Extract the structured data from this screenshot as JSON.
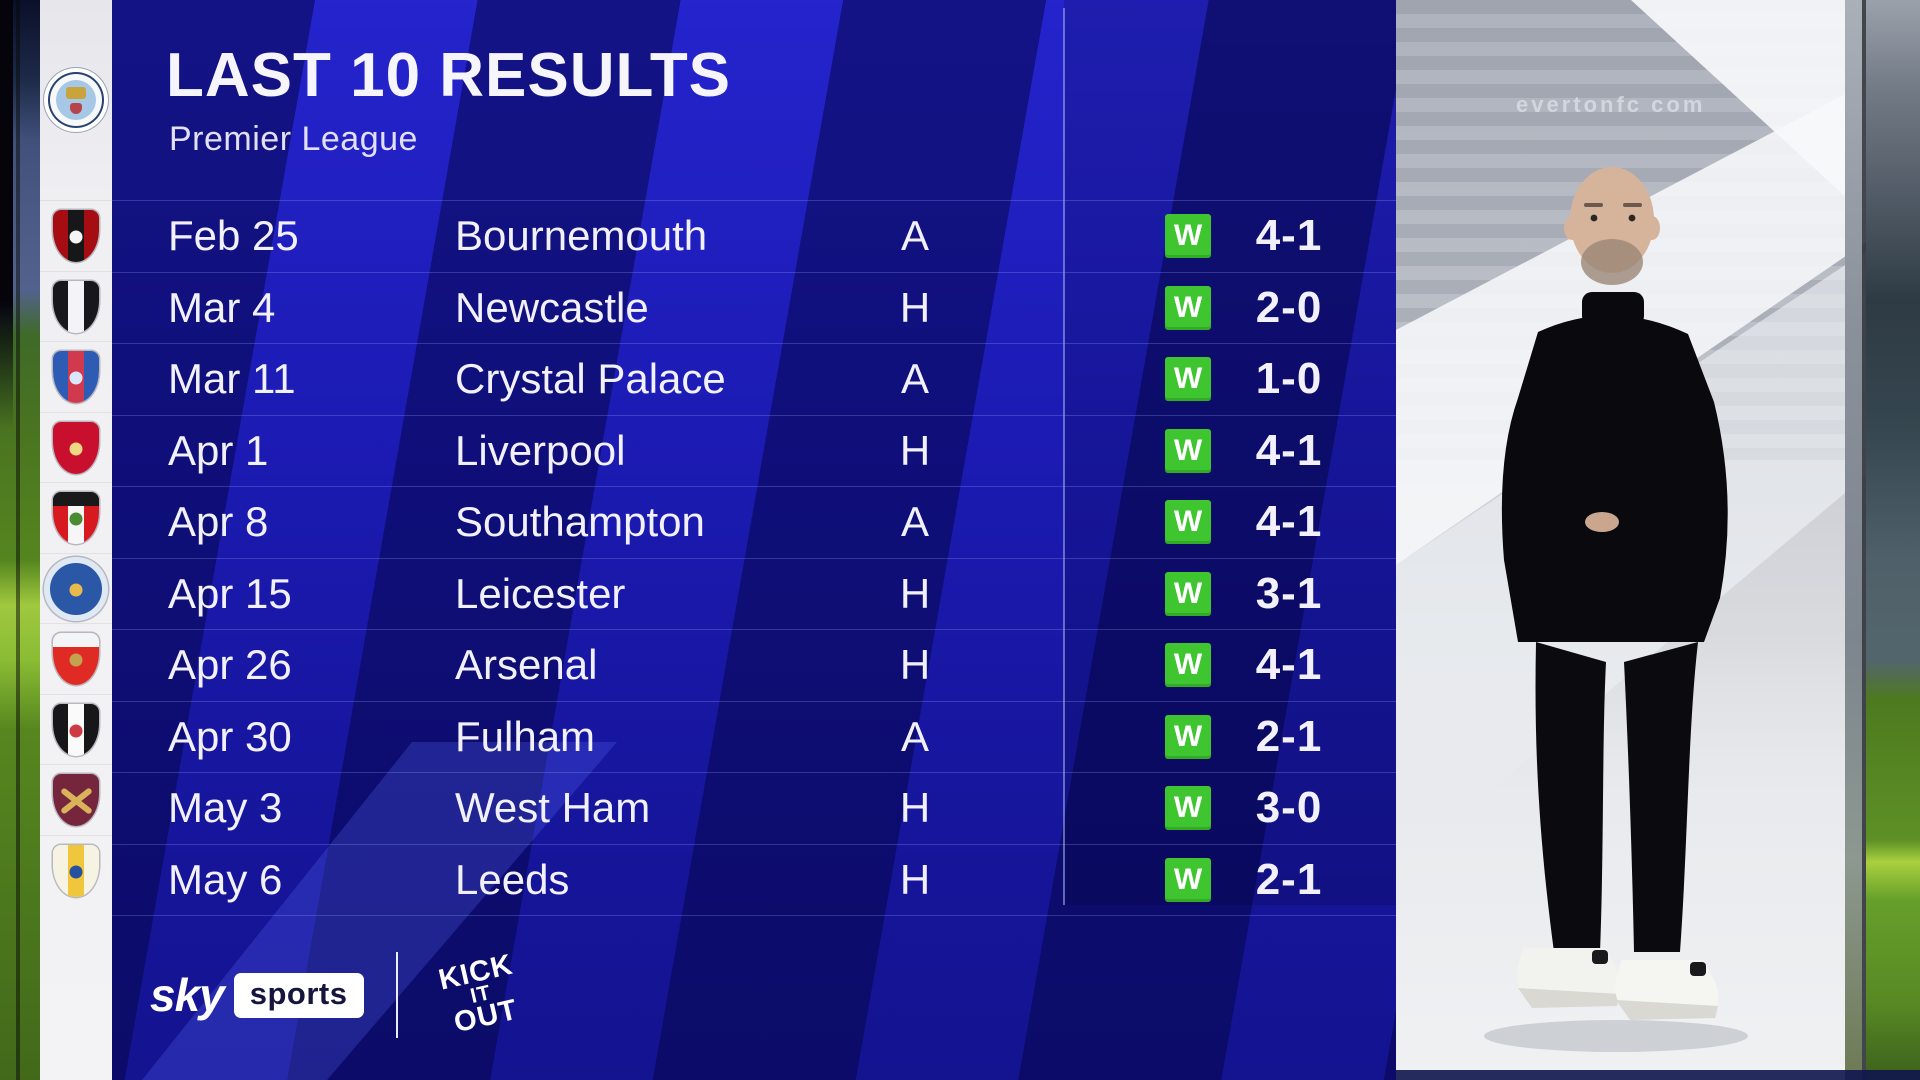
{
  "header": {
    "title": "LAST 10 RESULTS",
    "subtitle": "Premier League",
    "club": "Manchester City"
  },
  "club_badge": {
    "id": "manchester-city-crest",
    "outer": "#f7f8fa",
    "ring": "#27426e",
    "inner": "#a6c8e6",
    "gold": "#c9a33c",
    "red": "#b5454a"
  },
  "results": [
    {
      "date": "Feb 25",
      "opponent": "Bournemouth",
      "venue": "A",
      "outcome": "W",
      "score": "4-1",
      "badge": {
        "id": "bournemouth-crest",
        "type": "shield",
        "colors": [
          "#a50d12",
          "#17171a",
          "#a50d12"
        ],
        "chief": null,
        "accent": "#f5f5f5",
        "cross": null
      }
    },
    {
      "date": "Mar 4",
      "opponent": "Newcastle",
      "venue": "H",
      "outcome": "W",
      "score": "2-0",
      "badge": {
        "id": "newcastle-crest",
        "type": "shield",
        "colors": [
          "#17171c",
          "#f4f4f6",
          "#17171c"
        ],
        "chief": null,
        "accent": null,
        "cross": null
      }
    },
    {
      "date": "Mar 11",
      "opponent": "Crystal Palace",
      "venue": "A",
      "outcome": "W",
      "score": "1-0",
      "badge": {
        "id": "crystal-palace-crest",
        "type": "shield",
        "colors": [
          "#2e5cb5",
          "#d13a4e",
          "#2e5cb5"
        ],
        "chief": null,
        "accent": "#dce6fa",
        "cross": null
      }
    },
    {
      "date": "Apr 1",
      "opponent": "Liverpool",
      "venue": "H",
      "outcome": "W",
      "score": "4-1",
      "badge": {
        "id": "liverpool-crest",
        "type": "shield",
        "colors": [
          "#c8102e",
          "#c8102e",
          "#c8102e"
        ],
        "chief": null,
        "accent": "#f0d882",
        "cross": null
      }
    },
    {
      "date": "Apr 8",
      "opponent": "Southampton",
      "venue": "A",
      "outcome": "W",
      "score": "4-1",
      "badge": {
        "id": "southampton-crest",
        "type": "shield",
        "colors": [
          "#d71920",
          "#f6f6f6",
          "#d71920"
        ],
        "chief": "#191919",
        "accent": "#4b8c33",
        "cross": null
      }
    },
    {
      "date": "Apr 15",
      "opponent": "Leicester",
      "venue": "H",
      "outcome": "W",
      "score": "3-1",
      "badge": {
        "id": "leicester-crest",
        "type": "circle",
        "colors": [
          "#dfe9f6",
          "#2a58a6"
        ],
        "chief": null,
        "accent": "#e9b94c",
        "cross": null
      }
    },
    {
      "date": "Apr 26",
      "opponent": "Arsenal",
      "venue": "H",
      "outcome": "W",
      "score": "4-1",
      "badge": {
        "id": "arsenal-crest",
        "type": "shield",
        "colors": [
          "#e02a24",
          "#e02a24",
          "#e02a24"
        ],
        "chief": "#f3f4f6",
        "accent": "#c5a24e",
        "cross": null
      }
    },
    {
      "date": "Apr 30",
      "opponent": "Fulham",
      "venue": "A",
      "outcome": "W",
      "score": "2-1",
      "badge": {
        "id": "fulham-crest",
        "type": "shield",
        "colors": [
          "#17171a",
          "#fafafa",
          "#17171a"
        ],
        "chief": null,
        "accent": "#ce3a44",
        "cross": null
      }
    },
    {
      "date": "May 3",
      "opponent": "West Ham",
      "venue": "H",
      "outcome": "W",
      "score": "3-0",
      "badge": {
        "id": "west-ham-crest",
        "type": "shield",
        "colors": [
          "#75263d",
          "#75263d",
          "#75263d"
        ],
        "chief": null,
        "accent": null,
        "cross": "#d8b35a"
      }
    },
    {
      "date": "May 6",
      "opponent": "Leeds",
      "venue": "H",
      "outcome": "W",
      "score": "2-1",
      "badge": {
        "id": "leeds-crest",
        "type": "shield",
        "colors": [
          "#f7f3e2",
          "#f0c63c",
          "#f7f3e2"
        ],
        "chief": null,
        "accent": "#27509e",
        "cross": null
      }
    }
  ],
  "footer": {
    "sky": "sky",
    "sports": "sports",
    "kio": [
      "KICK",
      "IT",
      "OUT"
    ]
  },
  "photo": {
    "subject": "manager-photo",
    "watermark": "evertonfc com"
  },
  "theme": {
    "win_green": "#3ec52f",
    "panel_blue": "#1c1bb4",
    "band_navy": "#0e0d62",
    "strip_white": "#f0f0f3",
    "text_white": "#f2f1fb"
  }
}
